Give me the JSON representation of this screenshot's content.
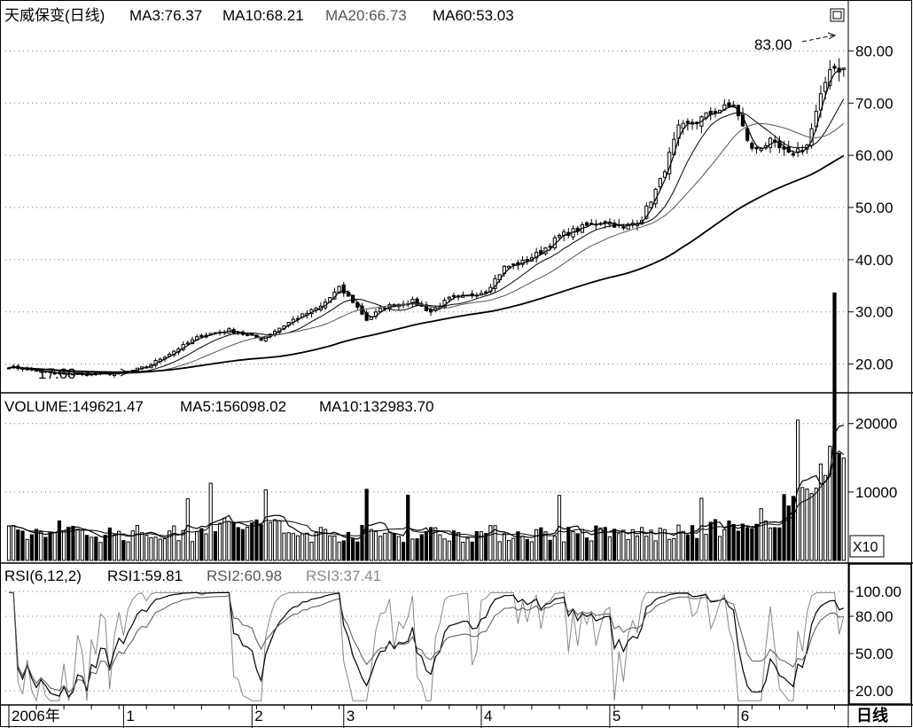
{
  "header": {
    "stock_title": "天威保变(日线)",
    "price_ma": [
      "MA3:76.37",
      "MA10:68.21",
      "MA20:66.73",
      "MA60:53.03"
    ],
    "volume_labels": [
      "VOLUME:149621.47",
      "MA5:156098.02",
      "MA10:132983.70"
    ],
    "rsi_labels": [
      "RSI(6,12,2)",
      "RSI1:59.81",
      "RSI2:60.98",
      "RSI3:37.41"
    ],
    "volume_multiplier": "X10",
    "period_label": "日线",
    "window_icon": "window-restore-icon"
  },
  "annotations": {
    "high_label": "83.00",
    "low_label": "17.60"
  },
  "colors": {
    "background": "#ffffff",
    "ink": "#000000",
    "ma20": "#555555",
    "rsi3": "#888888",
    "grid": "#777777"
  },
  "chart_data": [
    {
      "type": "candlestick",
      "panel": "price",
      "ylim": [
        15,
        85
      ],
      "y_ticks": [
        "20.00",
        "30.00",
        "40.00",
        "50.00",
        "60.00",
        "70.00",
        "80.00"
      ],
      "y_tick_values": [
        20,
        30,
        40,
        50,
        60,
        70,
        80
      ],
      "close_anchors": [
        [
          0,
          19.5
        ],
        [
          10,
          18.2
        ],
        [
          18,
          18.0
        ],
        [
          25,
          18.3
        ],
        [
          30,
          19.5
        ],
        [
          36,
          22.5
        ],
        [
          42,
          25.5
        ],
        [
          48,
          26.5
        ],
        [
          55,
          24.8
        ],
        [
          62,
          28.5
        ],
        [
          68,
          31.0
        ],
        [
          72,
          34.5
        ],
        [
          75,
          32.0
        ],
        [
          78,
          28.5
        ],
        [
          82,
          31.0
        ],
        [
          88,
          32.0
        ],
        [
          92,
          30.0
        ],
        [
          96,
          32.5
        ],
        [
          100,
          33.0
        ],
        [
          104,
          34.0
        ],
        [
          108,
          38.5
        ],
        [
          112,
          39.5
        ],
        [
          116,
          41.5
        ],
        [
          120,
          44.5
        ],
        [
          126,
          46.5
        ],
        [
          130,
          47.5
        ],
        [
          134,
          46.0
        ],
        [
          138,
          48.0
        ],
        [
          142,
          55.0
        ],
        [
          146,
          65.0
        ],
        [
          150,
          66.5
        ],
        [
          154,
          68.5
        ],
        [
          158,
          69.5
        ],
        [
          162,
          61.0
        ],
        [
          166,
          62.5
        ],
        [
          170,
          60.0
        ],
        [
          174,
          62.0
        ],
        [
          177,
          71.0
        ],
        [
          179,
          77.0
        ],
        [
          182,
          76.4
        ]
      ],
      "ma_periods": [
        3,
        10,
        20,
        60
      ],
      "ma_last": [
        76.37,
        68.21,
        66.73,
        53.03
      ]
    },
    {
      "type": "bar",
      "panel": "volume",
      "ylim": [
        0,
        21000
      ],
      "y_ticks": [
        "10000",
        "20000"
      ],
      "y_tick_values": [
        10000,
        20000
      ],
      "ma_periods": [
        5,
        10
      ],
      "last": {
        "volume": 149621.47,
        "ma5": 156098.02,
        "ma10": 132983.7
      }
    },
    {
      "type": "line",
      "panel": "rsi",
      "ylim": [
        10,
        105
      ],
      "y_ticks": [
        "20.00",
        "50.00",
        "80.00",
        "100.00"
      ],
      "y_tick_values": [
        20,
        50,
        80,
        100
      ],
      "series": [
        {
          "name": "RSI1",
          "last": 59.81
        },
        {
          "name": "RSI2",
          "last": 60.98
        },
        {
          "name": "RSI3",
          "last": 37.41
        }
      ]
    }
  ],
  "x_axis": {
    "labels": [
      "2006年",
      "1",
      "2",
      "3",
      "4",
      "5",
      "6"
    ],
    "label_index": [
      0,
      25,
      53,
      73,
      103,
      131,
      159
    ]
  }
}
